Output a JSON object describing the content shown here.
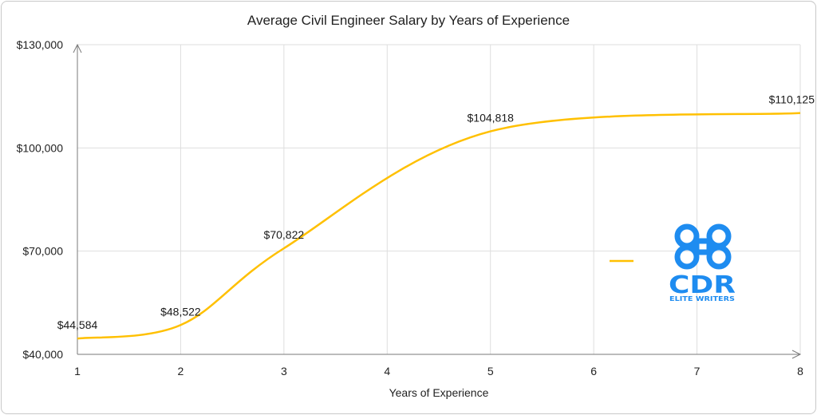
{
  "chart_data": {
    "type": "line",
    "title": "Average Civil Engineer Salary by Years of Experience",
    "xlabel": "Years of Experience",
    "ylabel": "",
    "x": [
      1,
      2,
      3,
      5,
      8
    ],
    "series": [
      {
        "values": [
          44584,
          48522,
          70822,
          104818,
          110125
        ],
        "labels": [
          "$44,584",
          "$48,522",
          "$70,822",
          "$104,818",
          "$110,125"
        ],
        "color": "#ffc000"
      }
    ],
    "x_ticks": [
      "1",
      "2",
      "3",
      "4",
      "5",
      "6",
      "7",
      "8"
    ],
    "y_ticks": [
      "$40,000",
      "$70,000",
      "$100,000",
      "$130,000"
    ],
    "xlim": [
      1,
      8
    ],
    "ylim": [
      40000,
      130000
    ],
    "grid": true,
    "legend": "right"
  },
  "logo": {
    "name": "cdr-elite-writers-logo",
    "primary_text": "CDR",
    "secondary_text": "ELITE WRITERS",
    "color": "#1e8cf0"
  }
}
